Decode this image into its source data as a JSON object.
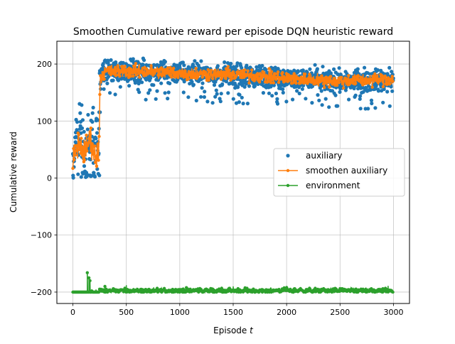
{
  "chart_data": {
    "type": "scatter",
    "title": "Smoothen Cumulative reward per episode DQN heuristic reward",
    "xlabel_text": "Episode ",
    "xlabel_var": "t",
    "ylabel": "Cumulative reward",
    "xlim": [
      -150,
      3150
    ],
    "ylim": [
      -220,
      240
    ],
    "x_ticks": [
      0,
      500,
      1000,
      1500,
      2000,
      2500,
      3000
    ],
    "y_ticks": [
      -200,
      -100,
      0,
      100,
      200
    ],
    "grid": true,
    "legend_position": "center-right",
    "n_episodes": 3000,
    "series": [
      {
        "name": "auxiliary",
        "kind": "scatter",
        "color": "#1f77b4",
        "trend": [
          [
            0,
            40
          ],
          [
            30,
            70
          ],
          [
            60,
            85
          ],
          [
            100,
            75
          ],
          [
            130,
            55
          ],
          [
            160,
            80
          ],
          [
            200,
            70
          ],
          [
            240,
            60
          ],
          [
            250,
            150
          ],
          [
            270,
            188
          ],
          [
            500,
            188
          ],
          [
            1000,
            185
          ],
          [
            1500,
            180
          ],
          [
            2000,
            175
          ],
          [
            2500,
            170
          ],
          [
            3000,
            172
          ]
        ],
        "spread_early": 60,
        "spread_late": 22
      },
      {
        "name": "smoothen auxiliary",
        "kind": "line-marker",
        "color": "#ff7f0e",
        "trend": [
          [
            0,
            25
          ],
          [
            20,
            45
          ],
          [
            50,
            60
          ],
          [
            80,
            55
          ],
          [
            110,
            40
          ],
          [
            150,
            70
          ],
          [
            180,
            60
          ],
          [
            210,
            35
          ],
          [
            240,
            40
          ],
          [
            255,
            175
          ],
          [
            300,
            187
          ],
          [
            500,
            188
          ],
          [
            800,
            186
          ],
          [
            1000,
            184
          ],
          [
            1500,
            181
          ],
          [
            1800,
            178
          ],
          [
            2000,
            175
          ],
          [
            2500,
            170
          ],
          [
            3000,
            174
          ]
        ],
        "noise": 8
      },
      {
        "name": "environment",
        "kind": "line-marker",
        "color": "#2ca02c",
        "baseline": -200,
        "spikes": [
          [
            135,
            -166
          ],
          [
            150,
            -175
          ],
          [
            160,
            -180
          ],
          [
            300,
            -190
          ],
          [
            500,
            -188
          ],
          [
            1000,
            -193
          ],
          [
            1500,
            -190
          ],
          [
            2000,
            -192
          ],
          [
            2500,
            -194
          ],
          [
            2950,
            -189
          ]
        ]
      }
    ]
  }
}
